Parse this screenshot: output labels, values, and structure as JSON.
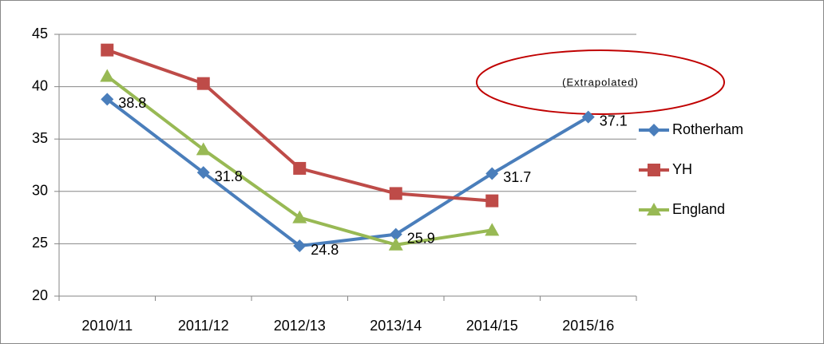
{
  "chart_data": {
    "type": "line",
    "categories": [
      "2010/11",
      "2011/12",
      "2012/13",
      "2013/14",
      "2014/15",
      "2015/16"
    ],
    "series": [
      {
        "name": "Rotherham",
        "color": "#4a7ebb",
        "marker": "diamond",
        "values": [
          38.8,
          31.8,
          24.8,
          25.9,
          31.7,
          37.1
        ],
        "show_value_labels": true
      },
      {
        "name": "YH",
        "color": "#be4b48",
        "marker": "square",
        "values": [
          43.5,
          40.3,
          32.2,
          29.8,
          29.1,
          null
        ]
      },
      {
        "name": "England",
        "color": "#98b954",
        "marker": "triangle",
        "values": [
          41.0,
          34.0,
          27.5,
          24.9,
          26.3,
          null
        ]
      }
    ],
    "ylim": [
      20,
      45
    ],
    "yticks": [
      20,
      25,
      30,
      35,
      40,
      45
    ],
    "grid": true,
    "legend": "right",
    "annotation": "(Extrapolated)",
    "annotation_color": "#c00000"
  }
}
